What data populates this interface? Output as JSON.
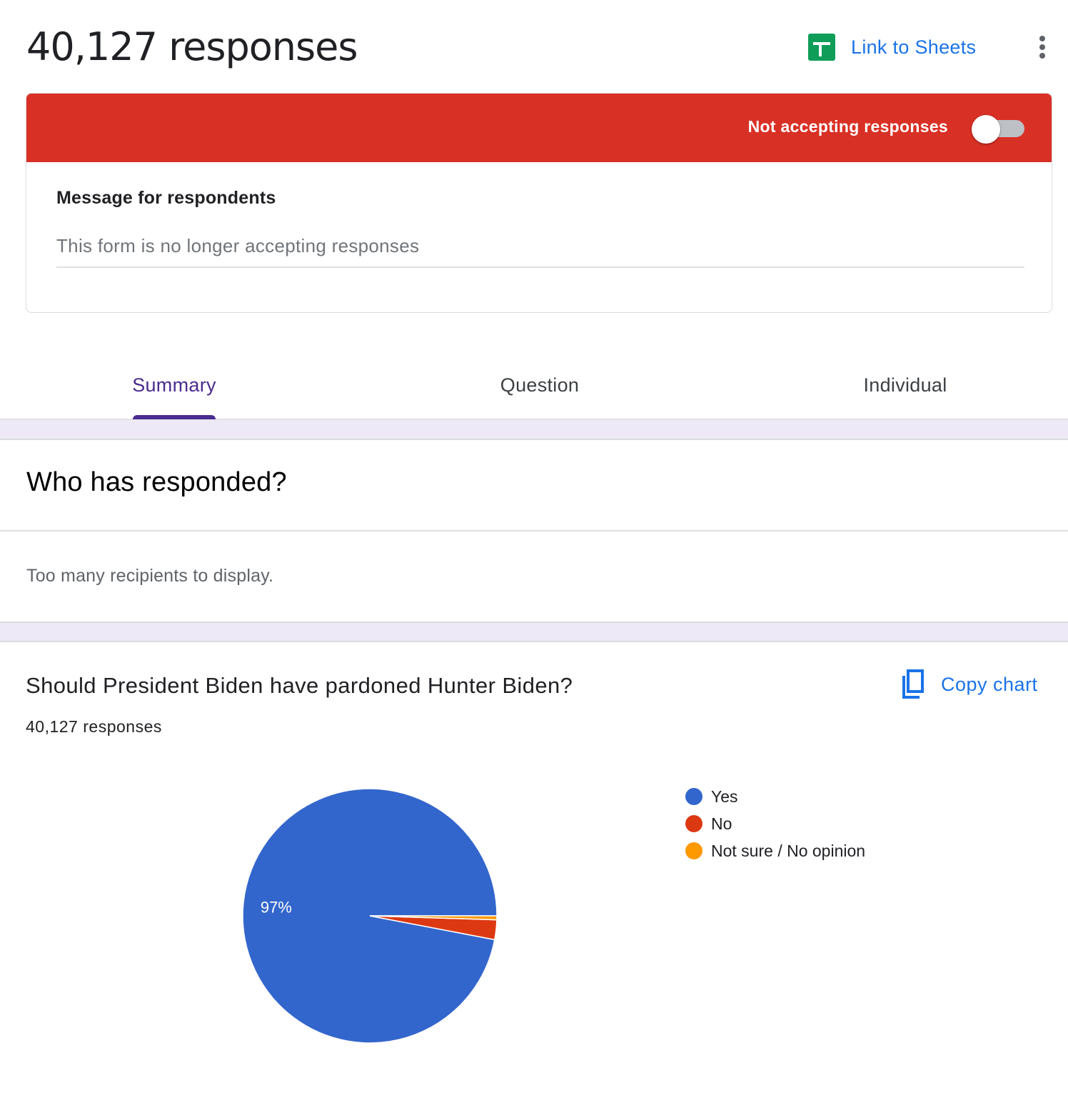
{
  "header": {
    "response_count_title": "40,127 responses",
    "sheets_icon": "google-sheets-icon",
    "link_to_sheets_label": "Link to Sheets",
    "more_icon": "more-vert-icon"
  },
  "accepting": {
    "status_label": "Not accepting responses",
    "toggle_on": false,
    "banner_color": "#d93025",
    "message_heading": "Message for respondents",
    "message_value": "This form is no longer accepting responses"
  },
  "tabs": [
    {
      "label": "Summary",
      "active": true
    },
    {
      "label": "Question",
      "active": false
    },
    {
      "label": "Individual",
      "active": false
    }
  ],
  "who": {
    "title": "Who has responded?",
    "note": "Too many recipients to display."
  },
  "question": {
    "title": "Should President Biden have pardoned Hunter Biden?",
    "response_count": "40,127 responses",
    "copy_icon": "copy-icon",
    "copy_label": "Copy chart"
  },
  "colors": {
    "accent": "#1a73e8",
    "tab_active": "#4a2b8f",
    "yes": "#3366cc",
    "no": "#dc3912",
    "not_sure": "#ff9900"
  },
  "chart_data": {
    "type": "pie",
    "categories": [
      "Yes",
      "No",
      "Not sure / No opinion"
    ],
    "values": [
      97,
      2.5,
      0.5
    ],
    "colors": [
      "#3366cc",
      "#dc3912",
      "#ff9900"
    ],
    "data_labels": [
      "97%",
      "",
      ""
    ],
    "legend_position": "right"
  }
}
